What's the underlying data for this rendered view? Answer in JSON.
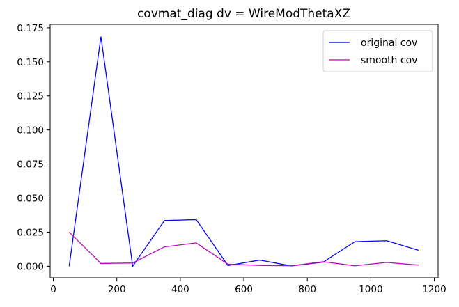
{
  "chart_data": {
    "type": "line",
    "title": "covmat_diag dv = WireModThetaXZ",
    "xlabel": "",
    "ylabel": "",
    "xlim": [
      -10,
      1212
    ],
    "ylim": [
      -0.0085,
      0.1775
    ],
    "x": [
      50,
      150,
      250,
      350,
      450,
      550,
      650,
      750,
      850,
      950,
      1050,
      1150
    ],
    "xticks": [
      0,
      200,
      400,
      600,
      800,
      1000,
      1200
    ],
    "xtick_labels": [
      "0",
      "200",
      "400",
      "600",
      "800",
      "1000",
      "1200"
    ],
    "yticks": [
      0.0,
      0.025,
      0.05,
      0.075,
      0.1,
      0.125,
      0.15,
      0.175
    ],
    "ytick_labels": [
      "0.000",
      "0.025",
      "0.050",
      "0.075",
      "0.100",
      "0.125",
      "0.150",
      "0.175"
    ],
    "grid": false,
    "legend_position": "top-right",
    "series": [
      {
        "name": "original cov",
        "color": "#0000ff",
        "values": [
          0.0,
          0.1685,
          0.0,
          0.0335,
          0.0342,
          0.0005,
          0.0045,
          0.0002,
          0.003,
          0.018,
          0.0187,
          0.0117
        ]
      },
      {
        "name": "smooth cov",
        "color": "#bf00bf",
        "values": [
          0.025,
          0.002,
          0.0024,
          0.0142,
          0.0171,
          0.0015,
          0.0006,
          0.0003,
          0.0033,
          0.0003,
          0.0028,
          0.0008
        ]
      }
    ]
  }
}
